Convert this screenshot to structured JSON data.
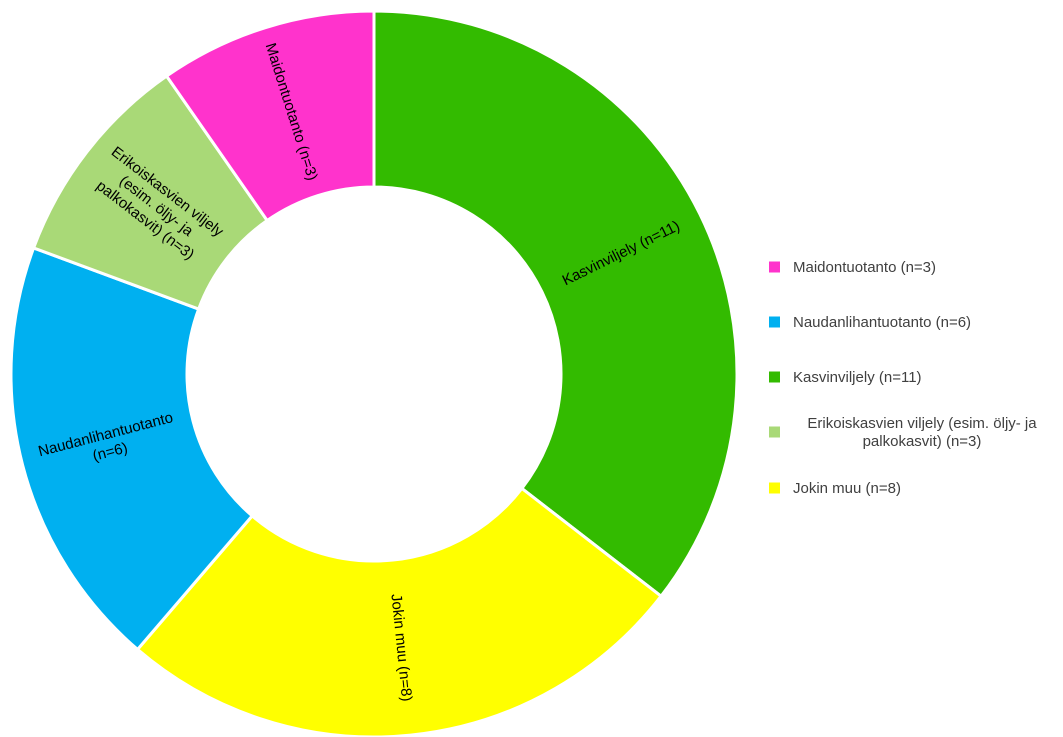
{
  "chart_data": {
    "type": "pie",
    "variant": "donut",
    "title": "",
    "categories": [
      "Maidontuotanto (n=3)",
      "Naudanlihantuotanto (n=6)",
      "Kasvinviljely (n=11)",
      "Erikoiskasvien viljely (esim. öljy- ja palkokasvit) (n=3)",
      "Jokin muu (n=8)"
    ],
    "values": [
      3,
      6,
      11,
      3,
      8
    ],
    "colors": [
      "#ff33cc",
      "#00b0f0",
      "#33bb00",
      "#a9d977",
      "#ffff00"
    ],
    "draw_order": [
      2,
      4,
      1,
      3,
      0
    ],
    "start_angle_deg": 0,
    "direction": "clockwise",
    "slice_labels": [
      [
        "Kasvinviljely (n=11)"
      ],
      [
        "Jokin muu (n=8)"
      ],
      [
        "Naudanlihantuotanto",
        "(n=6)"
      ],
      [
        "Erikoiskasvien viljely",
        "(esim. öljy- ja",
        "palkokasvit) (n=3)"
      ],
      [
        "Maidontuotanto (n=3)"
      ]
    ],
    "legend": {
      "position": "right",
      "entries": [
        {
          "color": "#ff33cc",
          "lines": [
            "Maidontuotanto (n=3)"
          ]
        },
        {
          "color": "#00b0f0",
          "lines": [
            "Naudanlihantuotanto (n=6)"
          ]
        },
        {
          "color": "#33bb00",
          "lines": [
            "Kasvinviljely (n=11)"
          ]
        },
        {
          "color": "#a9d977",
          "lines": [
            "Erikoiskasvien viljely (esim. öljy- ja",
            "palkokasvit) (n=3)"
          ]
        },
        {
          "color": "#ffff00",
          "lines": [
            "Jokin muu (n=8)"
          ]
        }
      ]
    }
  }
}
